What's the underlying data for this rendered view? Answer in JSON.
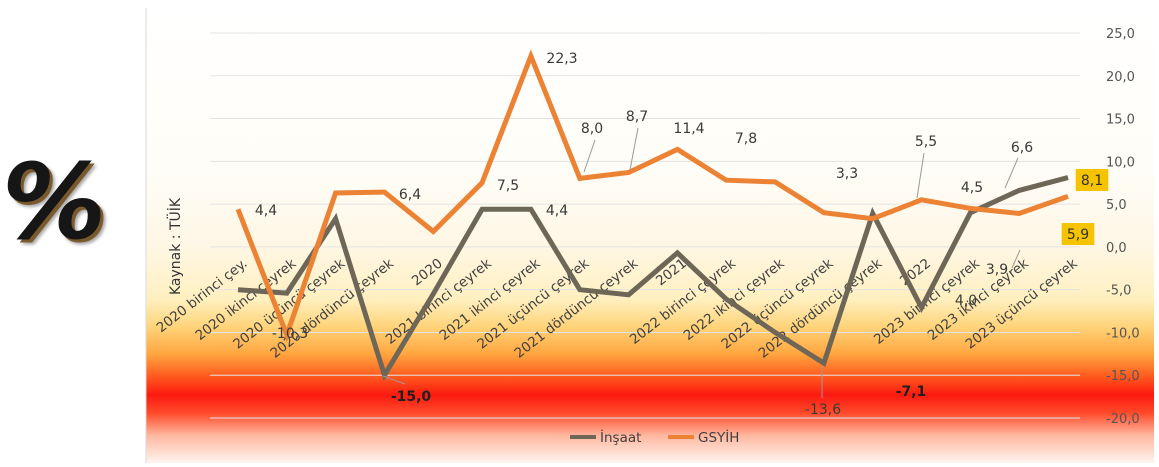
{
  "decor": {
    "percent_sign": "%"
  },
  "source_label": "Kaynak : TÜİK",
  "chart_data": {
    "type": "line",
    "categories": [
      "2020 birinci çey.",
      "2020 ikinci çeyrek",
      "2020 üçüncü çeyrek",
      "2020 dördüncü çeyrek",
      "2020",
      "2021 birinci çeyrek",
      "2021 ikinci çeyrek",
      "2021 üçüncü çeyrek",
      "2021 dördüncü çeyrek",
      "2021",
      "2022 birinci çeyrek",
      "2022 ikinci çeyrek",
      "2022 üçüncü çeyrek",
      "2022 dördüncü çeyrek",
      "2022",
      "2023 birinci çeyrek",
      "2023 ikinci çeyrek",
      "2023 üçüncü çeyrek"
    ],
    "series": [
      {
        "name": "İnşaat",
        "color": "#6e6656",
        "values": [
          -5.0,
          -5.4,
          3.3,
          -15.0,
          -5.5,
          4.4,
          4.4,
          -5.0,
          -5.6,
          -0.7,
          -6.1,
          -10.0,
          -13.6,
          3.9,
          -7.1,
          4.0,
          6.6,
          8.1
        ],
        "labels": {
          "3": "-15,0",
          "12": "-13,6",
          "14": "-7,1",
          "15": "4,0",
          "17": "8,1"
        }
      },
      {
        "name": "GSYİH",
        "color": "#ec8234",
        "values": [
          4.4,
          -10.3,
          6.3,
          6.4,
          1.8,
          7.5,
          22.3,
          8.0,
          8.7,
          11.4,
          7.8,
          7.6,
          4.0,
          3.3,
          5.5,
          4.5,
          3.9,
          5.9
        ],
        "labels": {
          "0": "4,4",
          "1": "-10,3",
          "3": "6,4",
          "5": "7,5",
          "6": "22,3",
          "7": "8,0",
          "8": "8,7",
          "9": "11,4",
          "10": "7,8",
          "13": "3,3",
          "14": "5,5",
          "15": "4,5",
          "16": "3,9",
          "17": "5,9"
        }
      }
    ],
    "extra_labels": [
      "4,4",
      "6,6"
    ],
    "y_axis": {
      "min": -20,
      "max": 25,
      "step": 5,
      "position": "right",
      "tick_labels": [
        "25,0",
        "20,0",
        "15,0",
        "10,0",
        "5,0",
        "0,0",
        "-5,0",
        "-10,0",
        "-15,0",
        "-20,0"
      ]
    },
    "grid": true,
    "legend": {
      "position": "bottom",
      "items": [
        "İnşaat",
        "GSYİH"
      ]
    },
    "highlight_color": "#f5c300",
    "title": "",
    "xlabel": "",
    "ylabel": ""
  }
}
